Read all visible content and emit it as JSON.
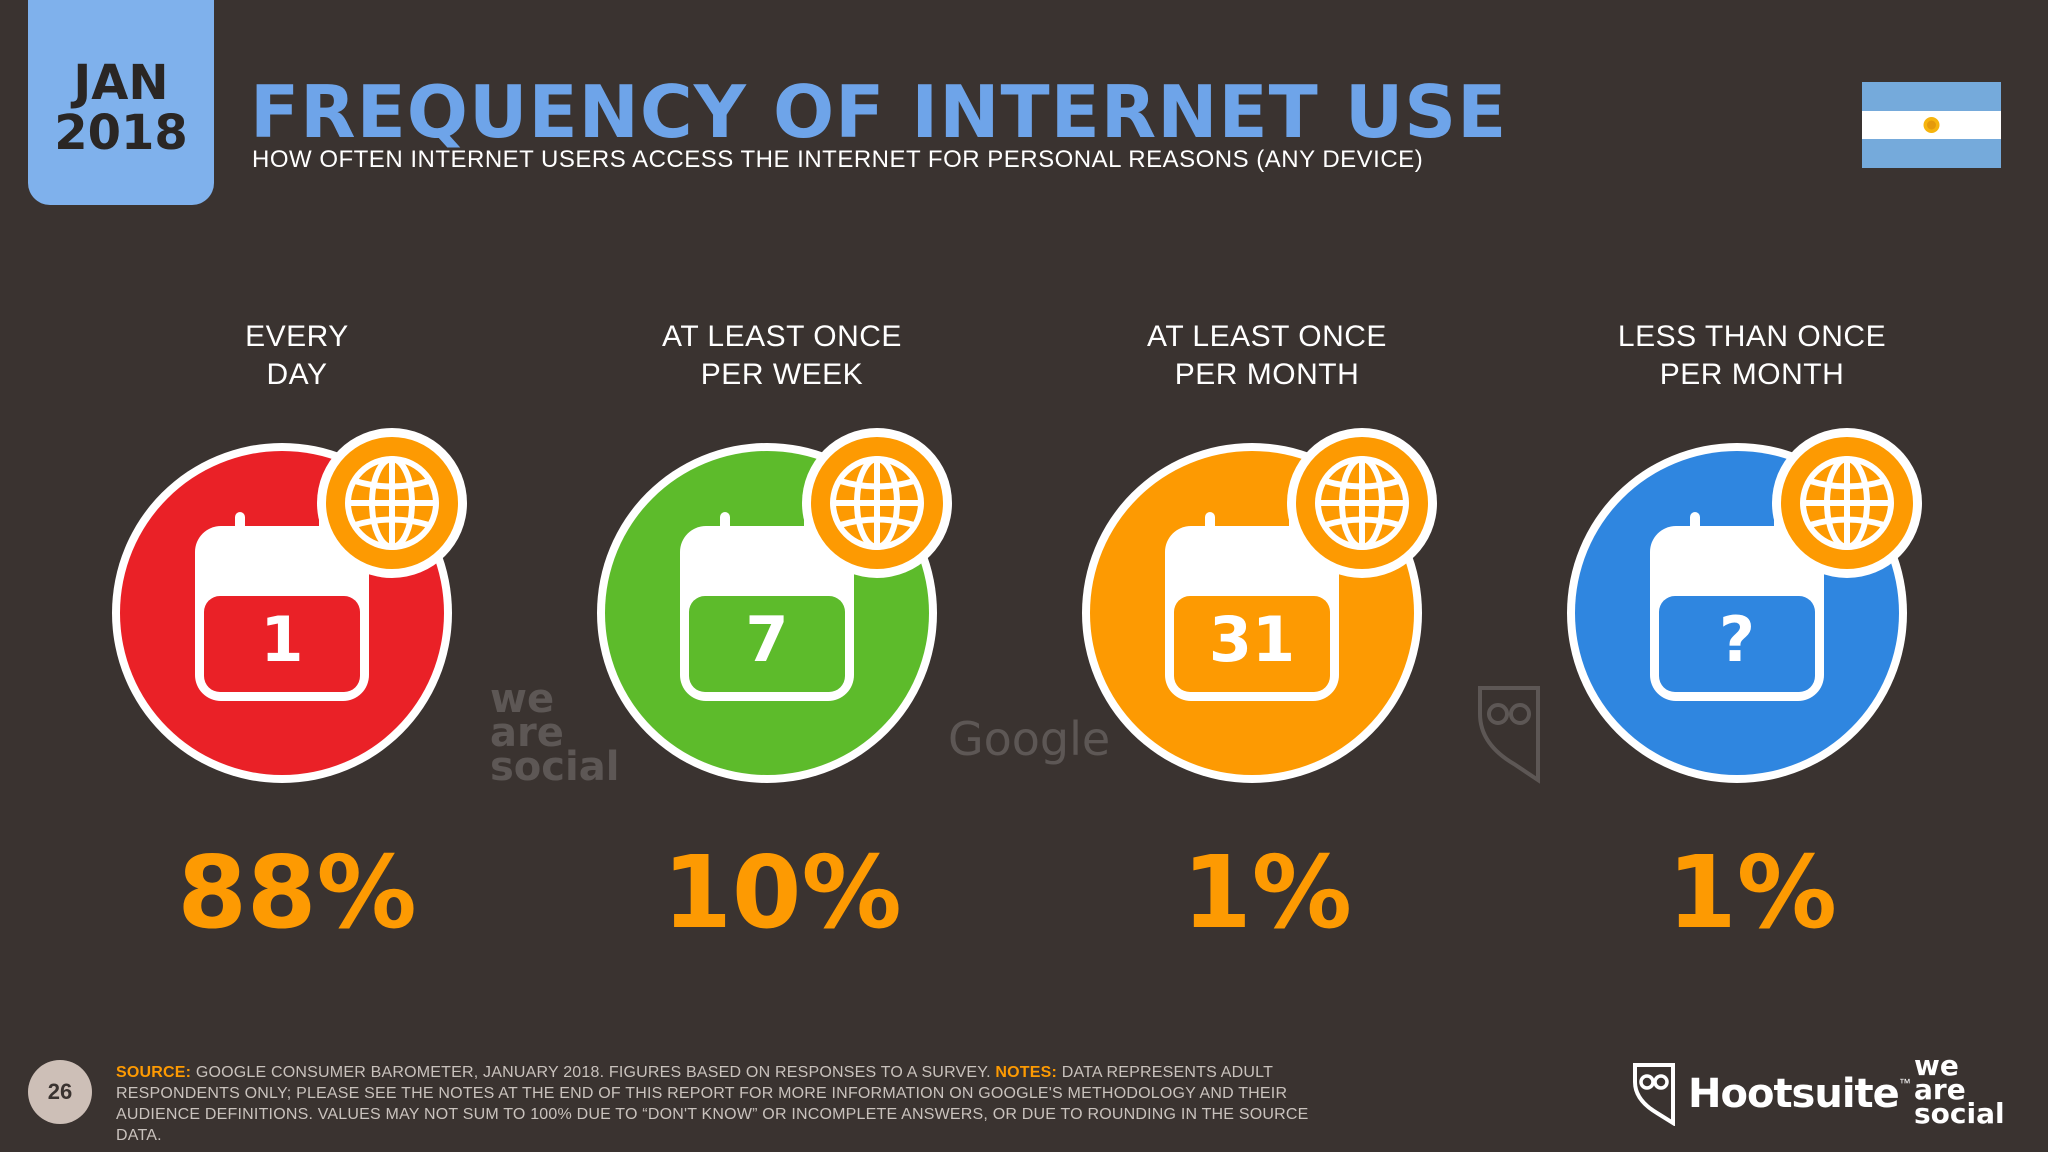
{
  "date": {
    "month": "JAN",
    "year": "2018"
  },
  "title": "FREQUENCY OF INTERNET USE",
  "subtitle": "HOW OFTEN INTERNET USERS ACCESS THE INTERNET FOR PERSONAL REASONS (ANY DEVICE)",
  "flag": "argentina-flag",
  "stats": [
    {
      "label_line1": "EVERY",
      "label_line2": "DAY",
      "calendar_value": "1",
      "percent": "88%",
      "color": "#ea2127"
    },
    {
      "label_line1": "AT LEAST ONCE",
      "label_line2": "PER WEEK",
      "calendar_value": "7",
      "percent": "10%",
      "color": "#5dbb2b"
    },
    {
      "label_line1": "AT LEAST ONCE",
      "label_line2": "PER MONTH",
      "calendar_value": "31",
      "percent": "1%",
      "color": "#fd9a02"
    },
    {
      "label_line1": "LESS THAN ONCE",
      "label_line2": "PER MONTH",
      "calendar_value": "?",
      "percent": "1%",
      "color": "#2f86e0"
    }
  ],
  "watermarks": {
    "we_are_social": [
      "we",
      "are",
      "social"
    ],
    "google": "Google"
  },
  "footer": {
    "page_number": "26",
    "source_label": "SOURCE:",
    "source_text": " GOOGLE CONSUMER BAROMETER, JANUARY 2018. FIGURES BASED ON RESPONSES TO A SURVEY. ",
    "notes_label": "NOTES:",
    "notes_text": " DATA REPRESENTS ADULT RESPONDENTS ONLY; PLEASE SEE THE NOTES AT THE END OF THIS REPORT FOR MORE INFORMATION ON GOOGLE'S METHODOLOGY AND THEIR AUDIENCE DEFINITIONS. VALUES MAY NOT SUM TO 100% DUE TO “DON'T KNOW” OR INCOMPLETE ANSWERS, OR DUE TO ROUNDING IN THE SOURCE DATA."
  },
  "brands": {
    "hootsuite": "Hootsuite",
    "tm": "™",
    "we_are_social": [
      "we",
      "are",
      "social"
    ]
  },
  "colors": {
    "accent_blue": "#6ea4e9",
    "accent_orange": "#fd9a02",
    "background": "#3a3330"
  }
}
